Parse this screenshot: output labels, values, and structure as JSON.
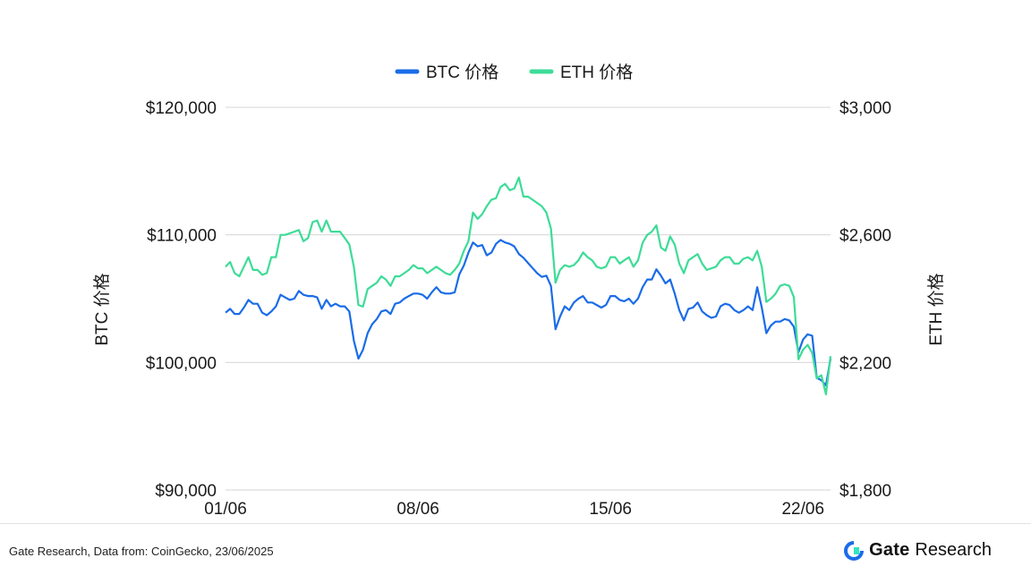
{
  "chart_data": {
    "type": "line",
    "legend": {
      "placement": "top-center"
    },
    "grid": true,
    "x_ticks": [
      "01/06",
      "08/06",
      "15/06",
      "22/06"
    ],
    "x_range": [
      "01/06",
      "23/06"
    ],
    "y_left": {
      "label": "BTC 价格",
      "range": [
        90000,
        120000
      ],
      "ticks": [
        "$90,000",
        "$100,000",
        "$110,000",
        "$120,000"
      ]
    },
    "y_right": {
      "label": "ETH 价格",
      "range": [
        1800,
        3000
      ],
      "ticks": [
        "$1,800",
        "$2,200",
        "$2,600",
        "$3,000"
      ]
    },
    "series": [
      {
        "name": "BTC 价格",
        "axis": "left",
        "color": "#1a6ce8",
        "values": [
          103900,
          104200,
          103800,
          103800,
          104300,
          104900,
          104600,
          104600,
          103900,
          103700,
          104000,
          104400,
          105300,
          105100,
          104900,
          105000,
          105600,
          105300,
          105200,
          105200,
          105100,
          104200,
          104900,
          104400,
          104600,
          104400,
          104400,
          104000,
          101700,
          100300,
          101000,
          102300,
          103000,
          103400,
          104000,
          104100,
          103800,
          104600,
          104700,
          105000,
          105200,
          105400,
          105400,
          105300,
          105000,
          105500,
          105900,
          105500,
          105400,
          105400,
          105500,
          106900,
          107600,
          108600,
          109400,
          109100,
          109200,
          108400,
          108600,
          109300,
          109600,
          109400,
          109300,
          109100,
          108500,
          108200,
          107800,
          107400,
          107000,
          106700,
          106800,
          106000,
          102600,
          103600,
          104400,
          104100,
          104700,
          105000,
          105200,
          104700,
          104700,
          104500,
          104300,
          104500,
          105200,
          105200,
          104900,
          104800,
          105000,
          104600,
          105000,
          105900,
          106500,
          106500,
          107300,
          106800,
          106200,
          106500,
          105400,
          104100,
          103300,
          104200,
          104300,
          104700,
          104000,
          103700,
          103500,
          103600,
          104400,
          104600,
          104500,
          104100,
          103900,
          104100,
          104400,
          104100,
          105900,
          104300,
          102300,
          102900,
          103200,
          103200,
          103400,
          103300,
          102800,
          100800,
          101800,
          102200,
          102100,
          98800,
          98600,
          98200,
          100300
        ]
      },
      {
        "name": "ETH 价格",
        "axis": "right",
        "color": "#3ddc97",
        "values": [
          2500,
          2515,
          2480,
          2470,
          2500,
          2530,
          2490,
          2490,
          2475,
          2480,
          2530,
          2530,
          2600,
          2600,
          2605,
          2610,
          2615,
          2580,
          2590,
          2640,
          2645,
          2610,
          2645,
          2610,
          2610,
          2610,
          2590,
          2570,
          2500,
          2380,
          2375,
          2430,
          2440,
          2450,
          2470,
          2460,
          2440,
          2470,
          2470,
          2480,
          2490,
          2505,
          2495,
          2495,
          2480,
          2490,
          2500,
          2490,
          2480,
          2475,
          2490,
          2510,
          2550,
          2580,
          2670,
          2650,
          2665,
          2690,
          2710,
          2715,
          2750,
          2760,
          2740,
          2745,
          2780,
          2720,
          2720,
          2710,
          2700,
          2690,
          2670,
          2620,
          2450,
          2490,
          2505,
          2500,
          2505,
          2520,
          2545,
          2530,
          2520,
          2500,
          2495,
          2500,
          2530,
          2530,
          2510,
          2520,
          2530,
          2500,
          2520,
          2575,
          2600,
          2610,
          2630,
          2560,
          2550,
          2595,
          2570,
          2510,
          2480,
          2520,
          2530,
          2540,
          2510,
          2490,
          2495,
          2500,
          2520,
          2530,
          2530,
          2510,
          2510,
          2525,
          2530,
          2520,
          2550,
          2500,
          2390,
          2400,
          2415,
          2440,
          2445,
          2440,
          2405,
          2210,
          2240,
          2255,
          2230,
          2150,
          2160,
          2100,
          2220
        ]
      }
    ]
  },
  "footer": {
    "source": "Gate Research, Data from: CoinGecko, 23/06/2025",
    "brand_name": "Gate",
    "brand_sub": "Research",
    "brand_color": "#1a6ce8"
  }
}
